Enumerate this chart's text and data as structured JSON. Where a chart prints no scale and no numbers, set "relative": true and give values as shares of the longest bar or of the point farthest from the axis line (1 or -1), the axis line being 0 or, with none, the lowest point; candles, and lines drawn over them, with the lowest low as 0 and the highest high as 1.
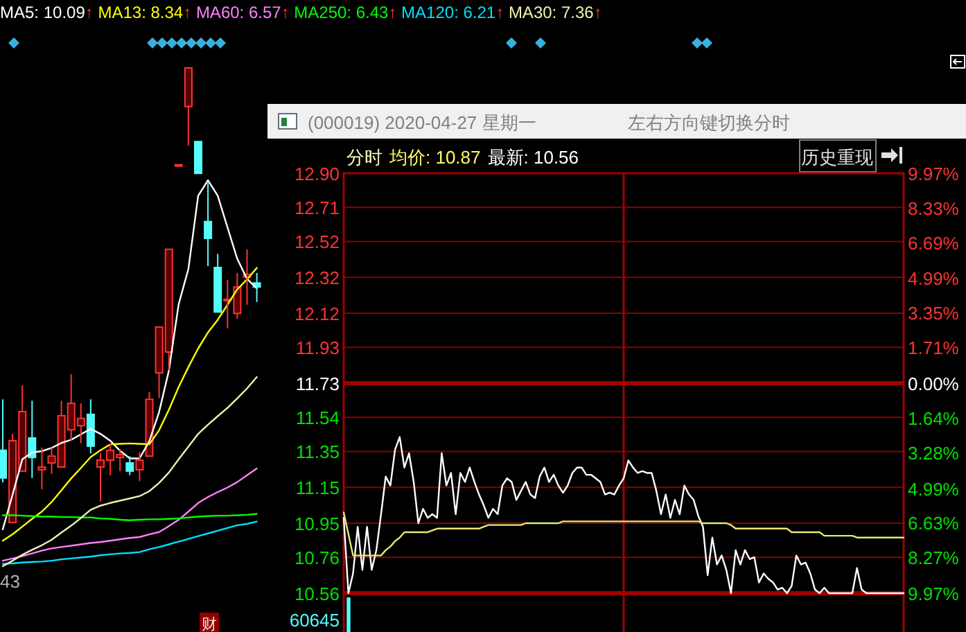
{
  "chart_data": [
    {
      "type": "candlestick",
      "relative": true,
      "categories": [
        null,
        null,
        null,
        null,
        null,
        null,
        null,
        null,
        null,
        null,
        null,
        null,
        null,
        null,
        null,
        null,
        null,
        null,
        null,
        null,
        null,
        null,
        null,
        null,
        null,
        null,
        null
      ],
      "ohlc": [
        [
          0.159,
          0.271,
          0.088,
          0.098
        ],
        [
          0,
          0.195,
          0,
          0.18
        ],
        [
          0.113,
          0.302,
          0.113,
          0.244
        ],
        [
          0.186,
          0.268,
          0.098,
          0.143
        ],
        [
          0.116,
          0.165,
          0.073,
          0.122
        ],
        [
          0.131,
          0.165,
          0.107,
          0.146
        ],
        [
          0.122,
          0.268,
          0.122,
          0.235
        ],
        [
          0.204,
          0.326,
          0.18,
          0.262
        ],
        [
          0.213,
          0.262,
          0.174,
          0.229
        ],
        [
          0.238,
          0.271,
          0.152,
          0.168
        ],
        [
          0.122,
          0.152,
          0.046,
          0.137
        ],
        [
          0.137,
          0.174,
          0.104,
          0.159
        ],
        [
          0.143,
          0.162,
          0.113,
          0.149
        ],
        [
          0.131,
          0.146,
          0.104,
          0.113
        ],
        [
          0.116,
          0.155,
          0.091,
          0.137
        ],
        [
          0.146,
          0.287,
          0.146,
          0.271
        ],
        [
          0.329,
          0.43,
          0.274,
          0.43
        ],
        [
          0.375,
          0.601,
          0.335,
          0.601
        ],
        [
          0.787,
          0.787,
          0.787,
          0.787
        ],
        [
          0.915,
          1,
          0.829,
          1
        ],
        [
          0.838,
          0.838,
          0.768,
          0.768
        ],
        [
          0.662,
          0.747,
          0.564,
          0.625
        ],
        [
          0.561,
          0.591,
          0.463,
          0.463
        ],
        [
          0.491,
          0.534,
          0.427,
          0.491
        ],
        [
          0.46,
          0.549,
          0.448,
          0.518
        ],
        [
          0.54,
          0.601,
          0.479,
          0.546
        ],
        [
          0.527,
          0.549,
          0.485,
          0.518
        ]
      ],
      "series": [
        {
          "name": "MA5: 10.09↑",
          "type": "line",
          "color": "#ffffff",
          "values": [
            -0.015,
            0.061,
            0.139,
            0.154,
            0.157,
            0.164,
            0.175,
            0.182,
            0.194,
            0.206,
            0.195,
            0.18,
            0.158,
            0.141,
            0.141,
            0.179,
            0.243,
            0.334,
            0.48,
            0.558,
            0.719,
            0.753,
            0.719,
            0.649,
            0.58,
            0.536,
            0.515
          ]
        },
        {
          "name": "MA13: 8.34↑",
          "type": "line",
          "color": "#ffff00",
          "values": [
            -0.04,
            -0.026,
            -0.009,
            0.008,
            0.024,
            0.045,
            0.071,
            0.097,
            0.12,
            0.144,
            0.159,
            0.172,
            0.173,
            0.174,
            0.173,
            0.172,
            0.203,
            0.248,
            0.298,
            0.342,
            0.383,
            0.418,
            0.446,
            0.479,
            0.513,
            0.535,
            0.56
          ]
        },
        {
          "name": "MA60: 6.57↑",
          "type": "line",
          "color": "#ff80ff",
          "values": [
            -0.084,
            -0.079,
            -0.074,
            -0.068,
            -0.062,
            -0.057,
            -0.054,
            -0.051,
            -0.048,
            -0.045,
            -0.043,
            -0.04,
            -0.037,
            -0.034,
            -0.032,
            -0.026,
            -0.021,
            -0.008,
            0.006,
            0.024,
            0.043,
            0.056,
            0.067,
            0.077,
            0.089,
            0.104,
            0.119
          ]
        },
        {
          "name": "MA250: 6.43↑",
          "type": "line",
          "color": "#00ff00",
          "values": [
            0.016,
            0.016,
            0.015,
            0.014,
            0.013,
            0.013,
            0.012,
            0.012,
            0.011,
            0.011,
            0.009,
            0.008,
            0.006,
            0.005,
            0.006,
            0.007,
            0.007,
            0.008,
            0.009,
            0.011,
            0.013,
            0.014,
            0.015,
            0.015,
            0.016,
            0.017,
            0.019
          ]
        },
        {
          "name": "MA120: 6.21↑",
          "type": "line",
          "color": "#00e0ff",
          "values": [
            -0.091,
            -0.09,
            -0.088,
            -0.087,
            -0.086,
            -0.084,
            -0.081,
            -0.079,
            -0.077,
            -0.075,
            -0.072,
            -0.07,
            -0.068,
            -0.067,
            -0.065,
            -0.059,
            -0.054,
            -0.048,
            -0.042,
            -0.036,
            -0.03,
            -0.024,
            -0.018,
            -0.012,
            -0.006,
            -0.003,
            0.002
          ]
        },
        {
          "name": "MA30: 7.36↑",
          "type": "line",
          "color": "#f0f0b0",
          "values": [
            -0.096,
            -0.084,
            -0.071,
            -0.06,
            -0.05,
            -0.038,
            -0.022,
            -0.007,
            0.01,
            0.028,
            0.037,
            0.043,
            0.048,
            0.053,
            0.058,
            0.069,
            0.087,
            0.11,
            0.139,
            0.167,
            0.195,
            0.215,
            0.234,
            0.252,
            0.273,
            0.295,
            0.32
          ]
        }
      ],
      "annotations": [
        "43",
        "财"
      ]
    },
    {
      "type": "line",
      "title": "(000019) 2020-04-27 星期一",
      "categories": [
        null,
        null,
        null,
        null,
        null,
        null,
        null,
        null,
        null,
        null,
        null,
        null,
        null,
        null,
        null,
        null,
        null,
        null,
        null,
        null,
        null,
        null,
        null,
        null,
        null,
        null,
        null,
        null,
        null,
        null,
        null,
        null,
        null,
        null,
        null,
        null,
        null,
        null,
        null,
        null,
        null,
        null,
        null,
        null,
        null,
        null,
        null,
        null,
        null,
        null,
        null,
        null,
        null,
        null,
        null,
        null,
        null,
        null,
        null,
        null,
        null,
        null,
        null,
        null,
        null,
        null,
        null,
        null,
        null,
        null,
        null,
        null,
        null,
        null,
        null,
        null,
        null,
        null,
        null,
        null,
        null,
        null,
        null,
        null,
        null,
        null,
        null,
        null,
        null,
        null,
        null,
        null,
        null,
        null,
        null,
        null,
        null,
        null,
        null,
        null,
        null,
        null,
        null,
        null,
        null,
        null,
        null,
        null,
        null,
        null,
        null,
        null,
        null,
        null,
        null,
        null,
        null,
        null,
        null,
        null,
        null
      ],
      "ylim": [
        10.56,
        12.9
      ],
      "yticks": [
        {
          "value": 12.9,
          "label": "12.90"
        },
        12.71,
        12.52,
        12.32,
        12.12,
        11.93,
        11.73,
        11.54,
        11.35,
        11.15,
        10.95,
        10.76,
        10.56
      ],
      "y2lim": [
        -9.97,
        9.97
      ],
      "y2ticks": [
        {
          "value": 9.97,
          "label": "9.97%"
        },
        {
          "value": 8.33,
          "label": "8.33%"
        },
        {
          "value": 6.69,
          "label": "6.69%"
        },
        {
          "value": 4.99,
          "label": "4.99%"
        },
        {
          "value": 3.35,
          "label": "3.35%"
        },
        {
          "value": 1.71,
          "label": "1.71%"
        },
        {
          "value": 0,
          "label": "0.00%"
        },
        {
          "value": -1.64,
          "label": "1.64%"
        },
        {
          "value": -3.28,
          "label": "3.28%"
        },
        {
          "value": -4.99,
          "label": "4.99%"
        },
        {
          "value": -6.63,
          "label": "6.63%"
        },
        {
          "value": -8.27,
          "label": "8.27%"
        },
        {
          "value": -9.97,
          "label": "9.97%"
        }
      ],
      "grid": "y",
      "series": [
        {
          "color": "#ffffff",
          "values": [
            10.98,
            10.56,
            10.67,
            10.93,
            10.69,
            10.93,
            10.69,
            10.8,
            11,
            11.21,
            11.16,
            11.36,
            11.43,
            11.26,
            11.34,
            11.18,
            10.95,
            11.03,
            10.98,
            11,
            10.98,
            11.34,
            11.16,
            11.23,
            11,
            11.23,
            11.18,
            11.26,
            11.18,
            11.11,
            11.05,
            10.98,
            11.03,
            11,
            11.16,
            11.2,
            11.18,
            11.08,
            11.13,
            11.18,
            11.11,
            11.09,
            11.21,
            11.26,
            11.18,
            11.22,
            11.16,
            11.12,
            11.16,
            11.23,
            11.26,
            11.26,
            11.22,
            11.22,
            11.2,
            11.18,
            11.11,
            11.12,
            11.11,
            11.16,
            11.2,
            11.3,
            11.26,
            11.23,
            11.24,
            11.23,
            11.23,
            11.13,
            11,
            11.11,
            10.98,
            11.08,
            11,
            11.16,
            11.11,
            11.08,
            10.99,
            10.93,
            10.66,
            10.87,
            10.72,
            10.77,
            10.69,
            10.56,
            10.8,
            10.72,
            10.8,
            10.75,
            10.76,
            10.62,
            10.67,
            10.64,
            10.62,
            10.58,
            10.59,
            10.56,
            10.6,
            10.77,
            10.72,
            10.73,
            10.67,
            10.58,
            10.56,
            10.59,
            10.56,
            10.56,
            10.56,
            10.56,
            10.56,
            10.56,
            10.7,
            10.58,
            10.56,
            10.56,
            10.56,
            10.56,
            10.56,
            10.56,
            10.56,
            10.56,
            10.56
          ]
        },
        {
          "color": "#e8e870",
          "values": [
            11.01,
            10.89,
            10.77,
            10.77,
            10.77,
            10.77,
            10.77,
            10.77,
            10.77,
            10.8,
            10.82,
            10.85,
            10.87,
            10.9,
            10.9,
            10.9,
            10.9,
            10.9,
            10.9,
            10.91,
            10.92,
            10.92,
            10.92,
            10.92,
            10.92,
            10.92,
            10.92,
            10.92,
            10.92,
            10.92,
            10.93,
            10.94,
            10.94,
            10.94,
            10.94,
            10.94,
            10.94,
            10.94,
            10.94,
            10.95,
            10.95,
            10.95,
            10.95,
            10.95,
            10.95,
            10.95,
            10.95,
            10.96,
            10.96,
            10.96,
            10.96,
            10.96,
            10.96,
            10.96,
            10.96,
            10.96,
            10.96,
            10.96,
            10.96,
            10.96,
            10.96,
            10.96,
            10.96,
            10.96,
            10.96,
            10.96,
            10.96,
            10.96,
            10.96,
            10.96,
            10.96,
            10.96,
            10.96,
            10.96,
            10.96,
            10.96,
            10.96,
            10.95,
            10.95,
            10.95,
            10.95,
            10.95,
            10.95,
            10.94,
            10.92,
            10.92,
            10.92,
            10.92,
            10.92,
            10.92,
            10.92,
            10.92,
            10.92,
            10.92,
            10.92,
            10.92,
            10.9,
            10.9,
            10.9,
            10.9,
            10.9,
            10.9,
            10.9,
            10.88,
            10.88,
            10.88,
            10.88,
            10.88,
            10.88,
            10.88,
            10.87,
            10.87,
            10.87,
            10.87,
            10.87,
            10.87,
            10.87,
            10.87,
            10.87,
            10.87,
            10.87
          ]
        }
      ],
      "ref_lines": [
        {
          "axis": "y",
          "value": 11.73,
          "color": "#a00000"
        }
      ],
      "annotations": [
        "分时",
        "均价: 10.87",
        "最新: 10.56",
        "左右方向键切换分时",
        "历史重现"
      ]
    },
    {
      "type": "bar",
      "relative": true,
      "categories": [
        null
      ],
      "values": [
        1
      ],
      "color": "#54fcfc",
      "annotations": [
        "60645"
      ]
    }
  ]
}
